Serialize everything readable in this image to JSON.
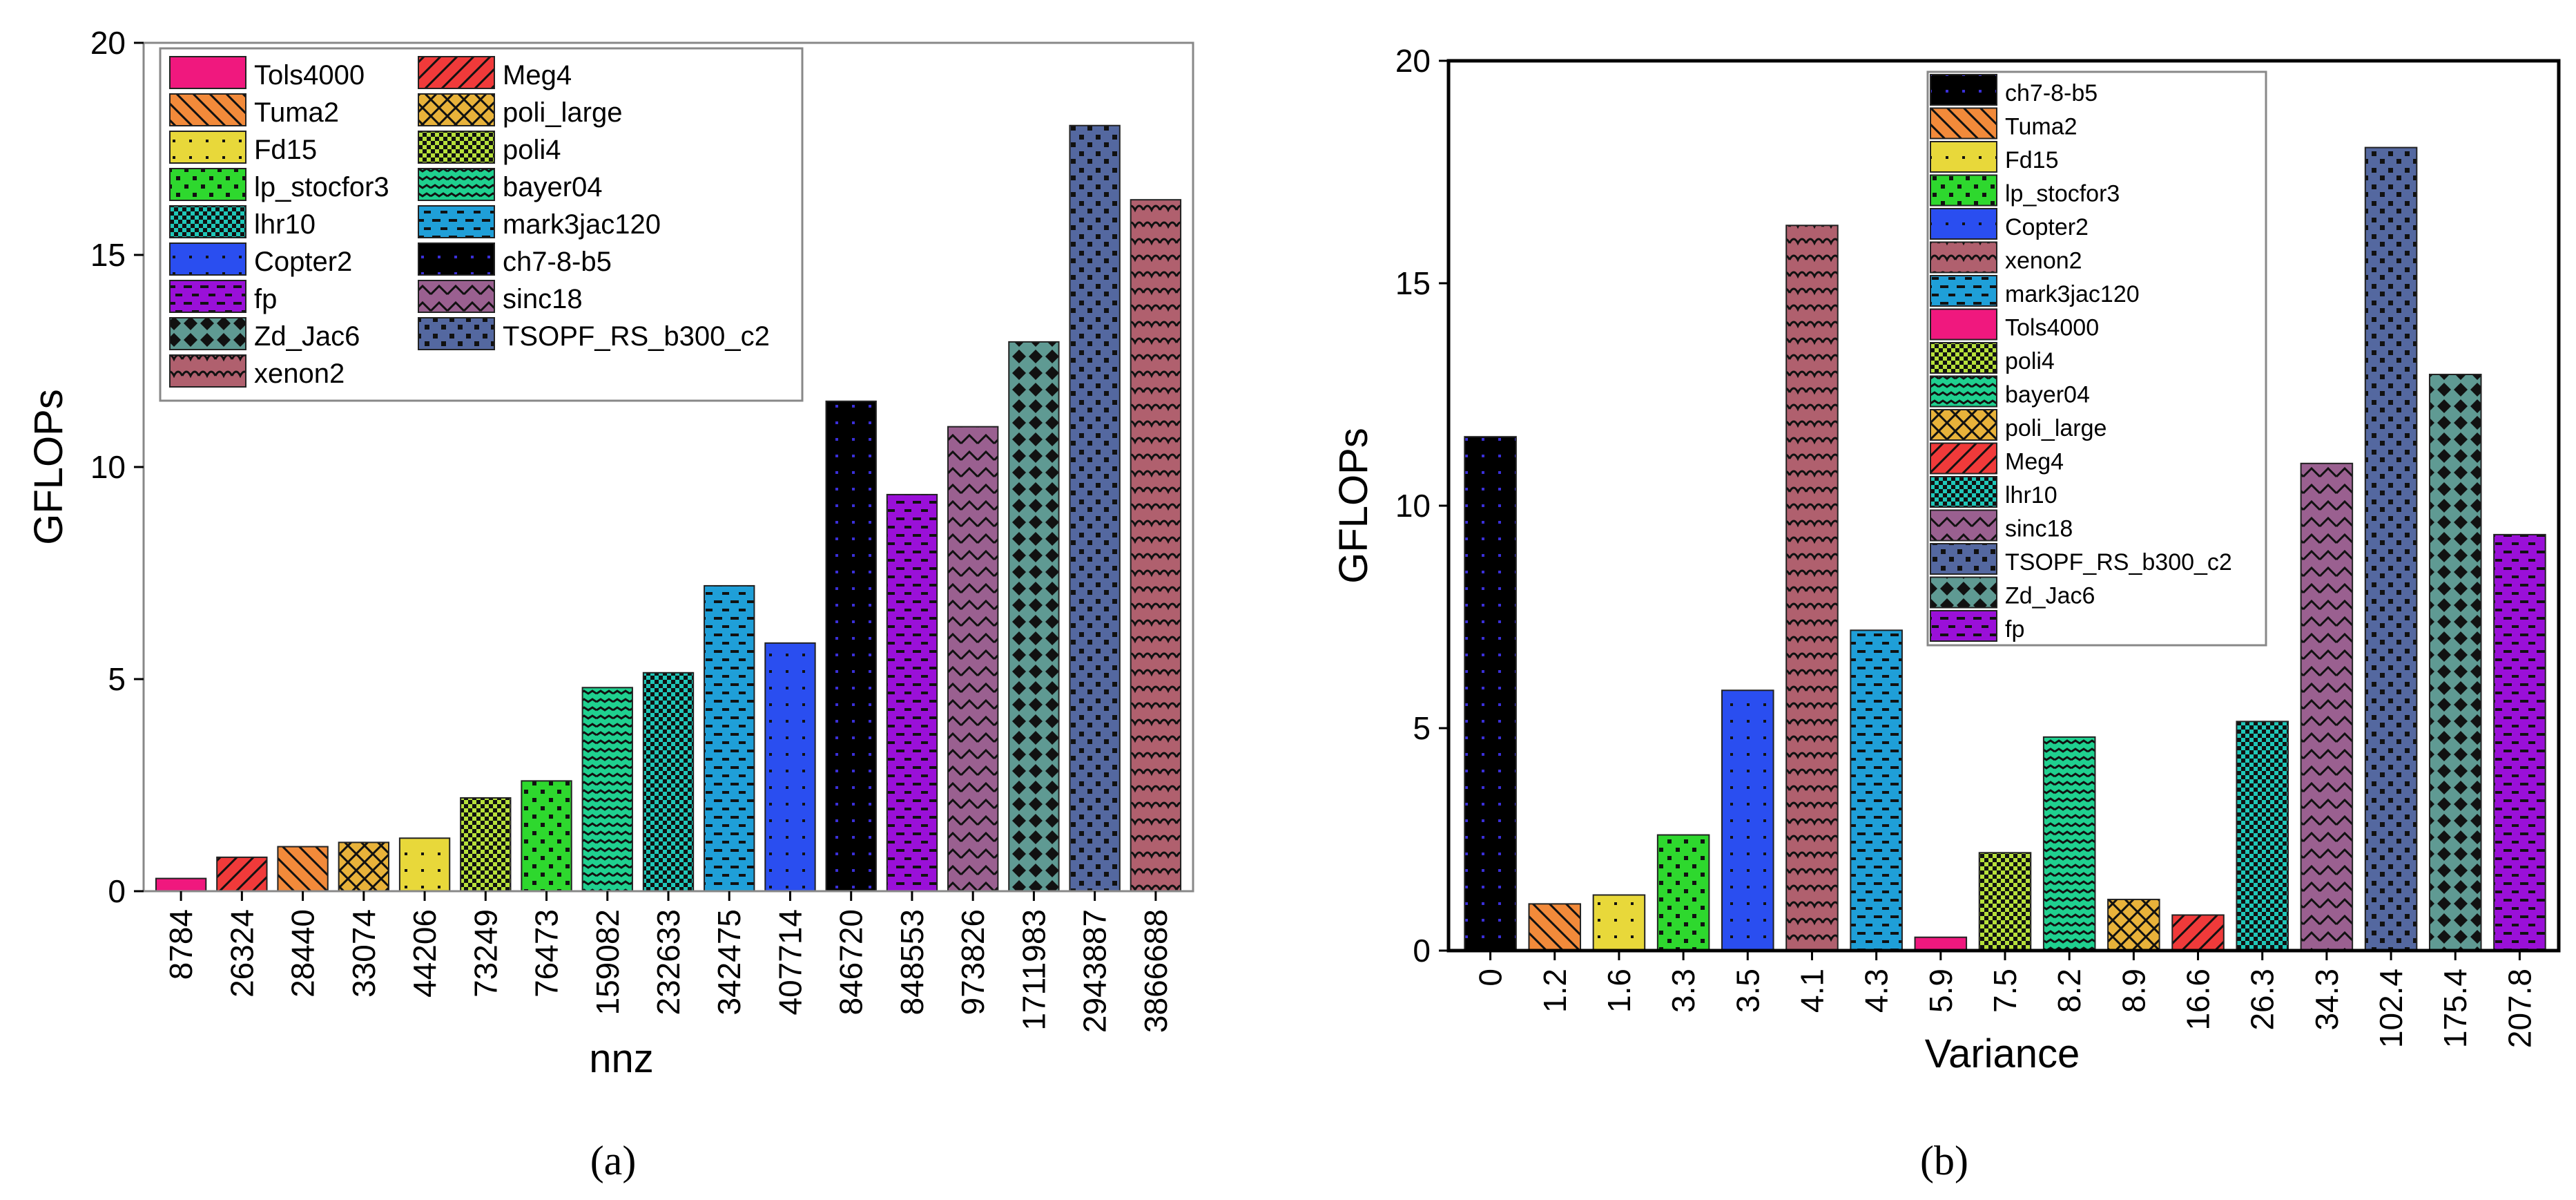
{
  "chart_data": [
    {
      "type": "bar",
      "panel_label": "(a)",
      "xlabel": "nnz",
      "ylabel": "GFLOPs",
      "ylim": [
        0,
        20
      ],
      "yticks": [
        "0",
        "5",
        "10",
        "15",
        "20"
      ],
      "categories": [
        "8784",
        "26324",
        "28440",
        "33074",
        "44206",
        "73249",
        "76473",
        "159082",
        "232633",
        "342475",
        "407714",
        "846720",
        "848553",
        "973826",
        "1711983",
        "2943887",
        "3866688"
      ],
      "matrices": [
        "Tols4000",
        "Meg4",
        "Tuma2",
        "poli_large",
        "Fd15",
        "poli4",
        "lp_stocfor3",
        "bayer04",
        "lhr10",
        "mark3jac120",
        "Copter2",
        "ch7-8-b5",
        "fp",
        "sinc18",
        "Zd_Jac6",
        "TSOPF_RS_b300_c2",
        "xenon2"
      ],
      "values": [
        0.3,
        0.8,
        1.05,
        1.15,
        1.25,
        2.2,
        2.6,
        4.8,
        5.15,
        7.2,
        5.85,
        11.55,
        9.35,
        10.95,
        12.95,
        18.05,
        16.3
      ],
      "legend": [
        "Tols4000",
        "Meg4",
        "Tuma2",
        "poli_large",
        "Fd15",
        "poli4",
        "lp_stocfor3",
        "bayer04",
        "lhr10",
        "mark3jac120",
        "Copter2",
        "ch7-8-b5",
        "fp",
        "sinc18",
        "Zd_Jac6",
        "TSOPF_RS_b300_c2",
        "xenon2"
      ],
      "legend_placement": "top-left"
    },
    {
      "type": "bar",
      "panel_label": "(b)",
      "xlabel": "Variance",
      "ylabel": "GFLOPs",
      "ylim": [
        0,
        20
      ],
      "yticks": [
        "0",
        "5",
        "10",
        "15",
        "20"
      ],
      "categories": [
        "0",
        "1.2",
        "1.6",
        "3.3",
        "3.5",
        "4.1",
        "4.3",
        "5.9",
        "7.5",
        "8.2",
        "8.9",
        "16.6",
        "26.3",
        "34.3",
        "102.4",
        "175.4",
        "207.8"
      ],
      "matrices": [
        "ch7-8-b5",
        "Tuma2",
        "Fd15",
        "lp_stocfor3",
        "Copter2",
        "xenon2",
        "mark3jac120",
        "Tols4000",
        "poli4",
        "bayer04",
        "poli_large",
        "Meg4",
        "lhr10",
        "sinc18",
        "TSOPF_RS_b300_c2",
        "Zd_Jac6",
        "fp"
      ],
      "values": [
        11.55,
        1.05,
        1.25,
        2.6,
        5.85,
        16.3,
        7.2,
        0.3,
        2.2,
        4.8,
        1.15,
        0.8,
        5.15,
        10.95,
        18.05,
        12.95,
        9.35
      ],
      "legend": [
        "ch7-8-b5",
        "Tuma2",
        "Fd15",
        "lp_stocfor3",
        "Copter2",
        "xenon2",
        "mark3jac120",
        "Tols4000",
        "poli4",
        "bayer04",
        "poli_large",
        "Meg4",
        "lhr10",
        "sinc18",
        "TSOPF_RS_b300_c2",
        "Zd_Jac6",
        "fp"
      ],
      "legend_placement": "top-center"
    }
  ],
  "colors": {
    "Tols4000": "#f0187e",
    "Meg4": "#f03a3a",
    "Tuma2": "#f28a3a",
    "poli_large": "#e8b23a",
    "Fd15": "#e8d83a",
    "poli4": "#b6e03a",
    "lp_stocfor3": "#2ed82e",
    "bayer04": "#1fd08f",
    "lhr10": "#1fc7b8",
    "mark3jac120": "#1f9fd8",
    "Copter2": "#2a4ef0",
    "ch7-8-b5": "#000000",
    "fp": "#9a10d8",
    "sinc18": "#9a6090",
    "Zd_Jac6": "#5f9a93",
    "TSOPF_RS_b300_c2": "#5468a0",
    "xenon2": "#b0606e"
  }
}
